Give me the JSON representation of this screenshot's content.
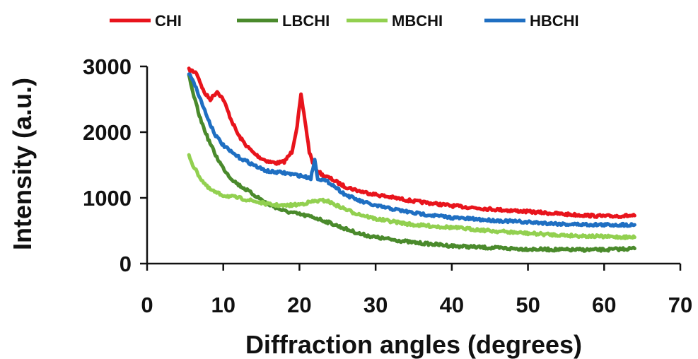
{
  "chart_data": {
    "type": "line",
    "title": "",
    "xlabel": "Diffraction angles (degrees)",
    "ylabel": "Intensity (a.u.)",
    "xlim": [
      0,
      70
    ],
    "ylim": [
      0,
      3000
    ],
    "xticks": [
      "0",
      "10",
      "20",
      "30",
      "40",
      "50",
      "60",
      "70"
    ],
    "yticks": [
      "0",
      "1000",
      "2000",
      "3000"
    ],
    "grid": false,
    "legend_position": "top",
    "series": [
      {
        "name": "CHI",
        "color": "#e8141c",
        "points": [
          [
            5.5,
            2950
          ],
          [
            6.5,
            2900
          ],
          [
            7.5,
            2600
          ],
          [
            8.3,
            2500
          ],
          [
            9.2,
            2620
          ],
          [
            10,
            2500
          ],
          [
            11,
            2200
          ],
          [
            12,
            1950
          ],
          [
            13,
            1800
          ],
          [
            14,
            1680
          ],
          [
            15,
            1600
          ],
          [
            16,
            1550
          ],
          [
            17,
            1530
          ],
          [
            18,
            1550
          ],
          [
            19,
            1700
          ],
          [
            19.7,
            2100
          ],
          [
            20.2,
            2560
          ],
          [
            20.7,
            2200
          ],
          [
            21.3,
            1700
          ],
          [
            22,
            1450
          ],
          [
            23,
            1350
          ],
          [
            24,
            1300
          ],
          [
            26,
            1170
          ],
          [
            28,
            1100
          ],
          [
            30,
            1050
          ],
          [
            35,
            950
          ],
          [
            40,
            880
          ],
          [
            45,
            830
          ],
          [
            50,
            790
          ],
          [
            55,
            750
          ],
          [
            60,
            720
          ],
          [
            64,
            730
          ]
        ]
      },
      {
        "name": "LBCHI",
        "color": "#4a8a2c",
        "points": [
          [
            5.5,
            2850
          ],
          [
            6,
            2600
          ],
          [
            7,
            2200
          ],
          [
            8,
            1900
          ],
          [
            9,
            1650
          ],
          [
            10,
            1450
          ],
          [
            11,
            1300
          ],
          [
            12,
            1200
          ],
          [
            14,
            1050
          ],
          [
            16,
            900
          ],
          [
            18,
            800
          ],
          [
            20,
            750
          ],
          [
            22,
            700
          ],
          [
            24,
            620
          ],
          [
            26,
            530
          ],
          [
            28,
            450
          ],
          [
            30,
            400
          ],
          [
            35,
            320
          ],
          [
            40,
            270
          ],
          [
            45,
            240
          ],
          [
            50,
            220
          ],
          [
            55,
            210
          ],
          [
            60,
            210
          ],
          [
            64,
            230
          ]
        ]
      },
      {
        "name": "MBCHI",
        "color": "#92d050",
        "points": [
          [
            5.5,
            1650
          ],
          [
            6,
            1500
          ],
          [
            7,
            1300
          ],
          [
            8,
            1150
          ],
          [
            9,
            1080
          ],
          [
            10,
            1040
          ],
          [
            12,
            1000
          ],
          [
            14,
            950
          ],
          [
            16,
            900
          ],
          [
            18,
            880
          ],
          [
            20,
            900
          ],
          [
            22,
            950
          ],
          [
            23.5,
            960
          ],
          [
            25,
            880
          ],
          [
            27,
            780
          ],
          [
            30,
            680
          ],
          [
            35,
            590
          ],
          [
            40,
            550
          ],
          [
            45,
            500
          ],
          [
            50,
            460
          ],
          [
            55,
            430
          ],
          [
            60,
            410
          ],
          [
            64,
            400
          ]
        ]
      },
      {
        "name": "HBCHI",
        "color": "#1f6fc2",
        "points": [
          [
            5.5,
            2900
          ],
          [
            6,
            2800
          ],
          [
            7,
            2500
          ],
          [
            8,
            2200
          ],
          [
            9,
            1950
          ],
          [
            10,
            1800
          ],
          [
            11,
            1700
          ],
          [
            12,
            1620
          ],
          [
            13,
            1560
          ],
          [
            14,
            1500
          ],
          [
            15,
            1440
          ],
          [
            16,
            1400
          ],
          [
            18,
            1380
          ],
          [
            20,
            1340
          ],
          [
            21.5,
            1300
          ],
          [
            22,
            1580
          ],
          [
            22.4,
            1300
          ],
          [
            24,
            1230
          ],
          [
            26,
            1050
          ],
          [
            28,
            950
          ],
          [
            30,
            880
          ],
          [
            35,
            770
          ],
          [
            40,
            700
          ],
          [
            45,
            660
          ],
          [
            50,
            630
          ],
          [
            55,
            600
          ],
          [
            60,
            590
          ],
          [
            64,
            590
          ]
        ]
      }
    ]
  }
}
